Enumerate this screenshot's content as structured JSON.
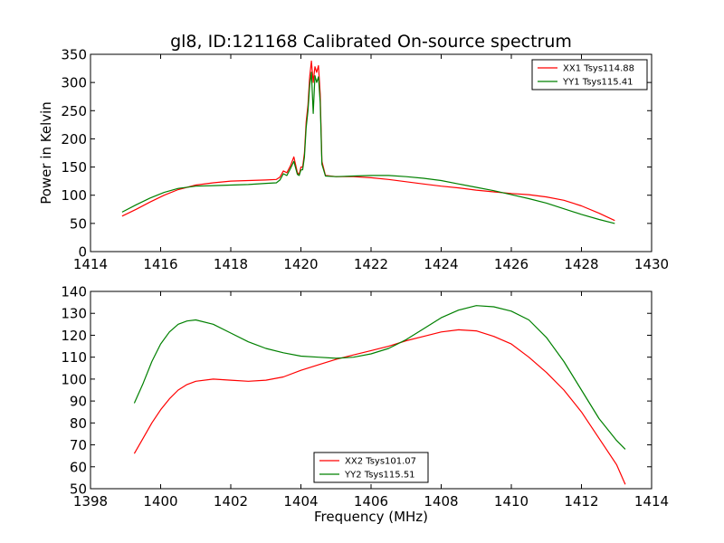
{
  "title": "gl8, ID:121168 Calibrated On-source spectrum",
  "chart_data": [
    {
      "type": "line",
      "title": "gl8, ID:121168 Calibrated On-source spectrum",
      "xlabel": "",
      "ylabel": "Power in Kelvin",
      "xlim": [
        1414,
        1430
      ],
      "ylim": [
        0,
        350
      ],
      "xticks": [
        1414,
        1416,
        1418,
        1420,
        1422,
        1424,
        1426,
        1428,
        1430
      ],
      "yticks": [
        0,
        50,
        100,
        150,
        200,
        250,
        300,
        350
      ],
      "grid": false,
      "legend_position": "top-right",
      "series": [
        {
          "name": "XX1 Tsys114.88",
          "color": "#ff0000",
          "x": [
            1414.9,
            1415.3,
            1415.7,
            1416.1,
            1416.5,
            1417.0,
            1417.5,
            1418.0,
            1418.5,
            1419.0,
            1419.3,
            1419.4,
            1419.5,
            1419.6,
            1419.7,
            1419.8,
            1419.9,
            1419.95,
            1420.0,
            1420.05,
            1420.1,
            1420.15,
            1420.2,
            1420.25,
            1420.3,
            1420.35,
            1420.4,
            1420.45,
            1420.5,
            1420.55,
            1420.6,
            1420.7,
            1421.0,
            1421.5,
            1422.0,
            1422.5,
            1423.0,
            1423.5,
            1424.0,
            1424.5,
            1425.0,
            1425.5,
            1426.0,
            1426.5,
            1427.0,
            1427.5,
            1428.0,
            1428.5,
            1428.95
          ],
          "y": [
            63,
            75,
            88,
            100,
            110,
            118,
            122,
            125,
            126,
            127,
            128,
            132,
            143,
            140,
            152,
            168,
            140,
            137,
            150,
            150,
            175,
            230,
            260,
            310,
            338,
            300,
            328,
            318,
            330,
            280,
            160,
            135,
            133,
            133,
            131,
            128,
            124,
            120,
            116,
            113,
            109,
            106,
            103,
            101,
            97,
            91,
            81,
            68,
            55
          ]
        },
        {
          "name": "YY1 Tsys115.41",
          "color": "#008000",
          "x": [
            1414.9,
            1415.3,
            1415.7,
            1416.1,
            1416.5,
            1417.0,
            1417.5,
            1418.0,
            1418.5,
            1419.0,
            1419.3,
            1419.4,
            1419.5,
            1419.6,
            1419.7,
            1419.8,
            1419.9,
            1419.95,
            1420.0,
            1420.05,
            1420.1,
            1420.15,
            1420.2,
            1420.25,
            1420.3,
            1420.35,
            1420.4,
            1420.45,
            1420.5,
            1420.55,
            1420.6,
            1420.7,
            1421.0,
            1421.5,
            1422.0,
            1422.5,
            1423.0,
            1423.5,
            1424.0,
            1424.5,
            1425.0,
            1425.5,
            1426.0,
            1426.5,
            1427.0,
            1427.5,
            1428.0,
            1428.5,
            1428.95
          ],
          "y": [
            70,
            83,
            95,
            105,
            112,
            116,
            117,
            118,
            119,
            121,
            122,
            127,
            138,
            135,
            147,
            160,
            137,
            135,
            145,
            145,
            168,
            220,
            250,
            295,
            318,
            245,
            312,
            300,
            310,
            265,
            155,
            134,
            133,
            134,
            135,
            135,
            133,
            130,
            126,
            120,
            114,
            108,
            101,
            94,
            86,
            76,
            66,
            57,
            50
          ]
        }
      ]
    },
    {
      "type": "line",
      "title": "",
      "xlabel": "Frequency (MHz)",
      "ylabel": "",
      "xlim": [
        1398,
        1414
      ],
      "ylim": [
        50,
        140
      ],
      "xticks": [
        1398,
        1400,
        1402,
        1404,
        1406,
        1408,
        1410,
        1412,
        1414
      ],
      "yticks": [
        50,
        60,
        70,
        80,
        90,
        100,
        110,
        120,
        130,
        140
      ],
      "grid": false,
      "legend_position": "bottom-center",
      "series": [
        {
          "name": "XX2 Tsys101.07",
          "color": "#ff0000",
          "x": [
            1399.25,
            1399.5,
            1399.75,
            1400.0,
            1400.25,
            1400.5,
            1400.75,
            1401.0,
            1401.5,
            1402.0,
            1402.5,
            1403.0,
            1403.5,
            1404.0,
            1404.5,
            1405.0,
            1405.5,
            1406.0,
            1406.5,
            1407.0,
            1407.5,
            1408.0,
            1408.5,
            1409.0,
            1409.5,
            1410.0,
            1410.5,
            1411.0,
            1411.5,
            1412.0,
            1412.5,
            1413.0,
            1413.25
          ],
          "y": [
            66,
            73,
            80,
            86,
            91,
            95,
            97.5,
            99,
            100,
            99.5,
            99,
            99.5,
            101,
            104,
            106.5,
            109,
            111,
            113,
            115,
            117.5,
            119.5,
            121.5,
            122.5,
            122,
            119.5,
            116,
            110,
            103,
            95,
            85,
            73,
            61,
            52
          ]
        },
        {
          "name": "YY2 Tsys115.51",
          "color": "#008000",
          "x": [
            1399.25,
            1399.5,
            1399.75,
            1400.0,
            1400.25,
            1400.5,
            1400.75,
            1401.0,
            1401.5,
            1402.0,
            1402.5,
            1403.0,
            1403.5,
            1404.0,
            1404.5,
            1405.0,
            1405.5,
            1406.0,
            1406.5,
            1407.0,
            1407.5,
            1408.0,
            1408.5,
            1409.0,
            1409.5,
            1410.0,
            1410.5,
            1411.0,
            1411.5,
            1412.0,
            1412.5,
            1413.0,
            1413.25
          ],
          "y": [
            89,
            98,
            108,
            116,
            121.5,
            125,
            126.5,
            127,
            125,
            121,
            117,
            114,
            112,
            110.5,
            110,
            109.5,
            110,
            111.5,
            114,
            118,
            123,
            128,
            131.5,
            133.5,
            133,
            131,
            127,
            119,
            108,
            95,
            82,
            72,
            68
          ]
        }
      ]
    }
  ]
}
